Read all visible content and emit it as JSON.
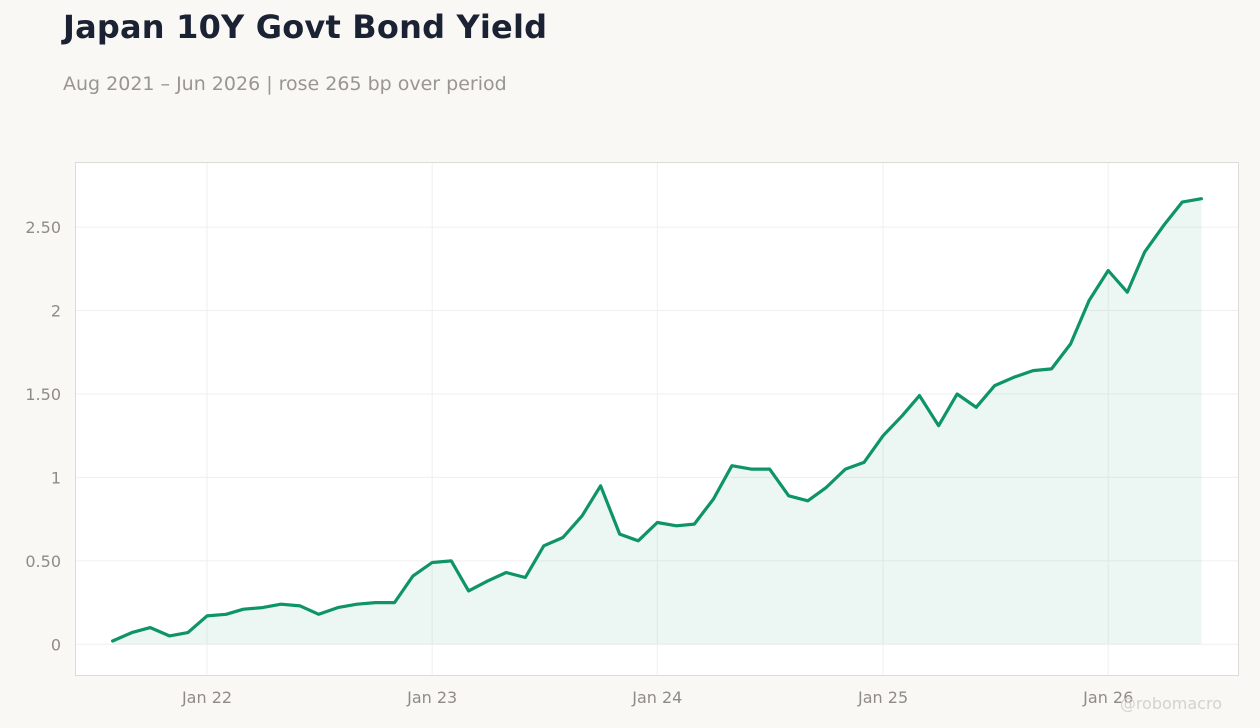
{
  "header": {
    "title": "Japan 10Y Govt Bond Yield",
    "subtitle": "Aug 2021 – Jun 2026 | rose 265 bp over period"
  },
  "watermark": "@robomacro",
  "colors": {
    "line": "#0e9466",
    "fill": "#0e9466",
    "plot_bg": "#ffffff",
    "page_bg": "#f9f8f5",
    "grid": "#efefec",
    "frame": "#dddbd6"
  },
  "chart_data": {
    "type": "area",
    "title": "Japan 10Y Govt Bond Yield",
    "subtitle": "Aug 2021 – Jun 2026 | rose 265 bp over period",
    "xlabel": "",
    "ylabel": "",
    "xlim": [
      "2021-06-01",
      "2026-08-01"
    ],
    "ylim": [
      -0.19,
      2.89
    ],
    "x_ticks": [
      {
        "date": "2022-01-01",
        "label": "Jan 22"
      },
      {
        "date": "2023-01-01",
        "label": "Jan 23"
      },
      {
        "date": "2024-01-01",
        "label": "Jan 24"
      },
      {
        "date": "2025-01-01",
        "label": "Jan 25"
      },
      {
        "date": "2026-01-01",
        "label": "Jan 26"
      }
    ],
    "y_ticks": [
      {
        "value": 0,
        "label": "0"
      },
      {
        "value": 0.5,
        "label": "0.50"
      },
      {
        "value": 1,
        "label": "1"
      },
      {
        "value": 1.5,
        "label": "1.50"
      },
      {
        "value": 2,
        "label": "2"
      },
      {
        "value": 2.5,
        "label": "2.50"
      }
    ],
    "grid": true,
    "series": [
      {
        "x": [
          "2021-08",
          "2021-09",
          "2021-10",
          "2021-11",
          "2021-12",
          "2022-01",
          "2022-02",
          "2022-03",
          "2022-04",
          "2022-05",
          "2022-06",
          "2022-07",
          "2022-08",
          "2022-09",
          "2022-10",
          "2022-11",
          "2022-12",
          "2023-01",
          "2023-02",
          "2023-03",
          "2023-04",
          "2023-05",
          "2023-06",
          "2023-07",
          "2023-08",
          "2023-09",
          "2023-10",
          "2023-11",
          "2023-12",
          "2024-01",
          "2024-02",
          "2024-03",
          "2024-04",
          "2024-05",
          "2024-06",
          "2024-07",
          "2024-08",
          "2024-09",
          "2024-10",
          "2024-11",
          "2024-12",
          "2025-01",
          "2025-02",
          "2025-03",
          "2025-04",
          "2025-05",
          "2025-06",
          "2025-07",
          "2025-08",
          "2025-09",
          "2025-10",
          "2025-11",
          "2025-12",
          "2026-01",
          "2026-02",
          "2026-03",
          "2026-04",
          "2026-05",
          "2026-06"
        ],
        "values": [
          0.02,
          0.07,
          0.1,
          0.05,
          0.07,
          0.17,
          0.18,
          0.21,
          0.22,
          0.24,
          0.23,
          0.18,
          0.22,
          0.24,
          0.25,
          0.25,
          0.41,
          0.49,
          0.5,
          0.32,
          0.38,
          0.43,
          0.4,
          0.59,
          0.64,
          0.77,
          0.95,
          0.66,
          0.62,
          0.73,
          0.71,
          0.72,
          0.87,
          1.07,
          1.05,
          1.05,
          0.89,
          0.86,
          0.94,
          1.05,
          1.09,
          1.25,
          1.37,
          1.49,
          1.31,
          1.5,
          1.42,
          1.55,
          1.6,
          1.64,
          1.65,
          1.8,
          2.06,
          2.24,
          2.11,
          2.35,
          2.51,
          2.65,
          2.67
        ]
      }
    ]
  }
}
